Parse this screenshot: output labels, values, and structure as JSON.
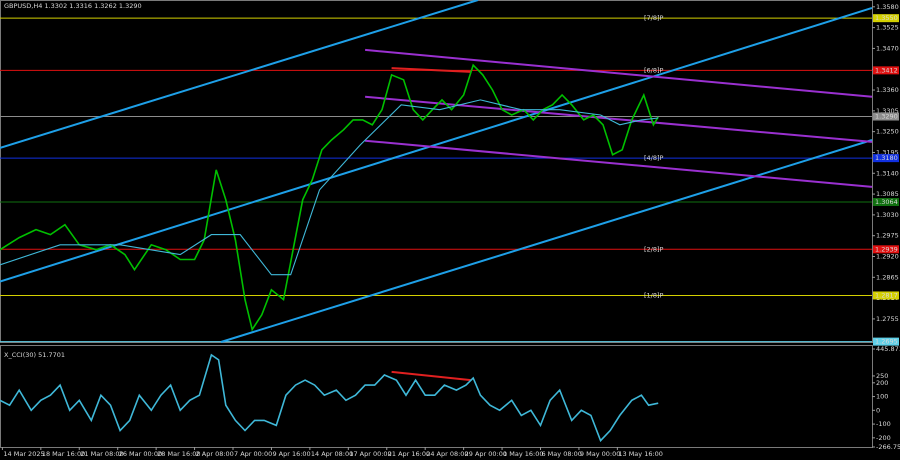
{
  "chart_data": [
    {
      "type": "line",
      "title": "GBPUSD,H4 1.3302 1.3316 1.3262 1.3290",
      "xlim": [
        0,
        363
      ],
      "ylim": [
        1.2694,
        1.3598
      ],
      "yticks": [
        {
          "value": 1.358,
          "label": "1.3580"
        },
        {
          "value": 1.3525,
          "label": "1.3525"
        },
        {
          "value": 1.347,
          "label": "1.3470"
        },
        {
          "value": 1.3415,
          "label": "1.3415"
        },
        {
          "value": 1.336,
          "label": "1.3360"
        },
        {
          "value": 1.3305,
          "label": "1.3305"
        },
        {
          "value": 1.325,
          "label": "1.3250"
        },
        {
          "value": 1.3195,
          "label": "1.3195"
        },
        {
          "value": 1.314,
          "label": "1.3140"
        },
        {
          "value": 1.3085,
          "label": "1.3085"
        },
        {
          "value": 1.303,
          "label": "1.3030"
        },
        {
          "value": 1.2975,
          "label": "1.2975"
        },
        {
          "value": 1.292,
          "label": "1.2920"
        },
        {
          "value": 1.2865,
          "label": "1.2865"
        },
        {
          "value": 1.281,
          "label": "1.2810"
        },
        {
          "value": 1.2755,
          "label": "1.2755"
        }
      ],
      "levels": [
        {
          "value": 1.355,
          "label": "1.3550",
          "color": "#d4d000",
          "tag": "[7/8]P"
        },
        {
          "value": 1.3412,
          "label": "1.3412",
          "color": "#e01010",
          "tag": "[6/8]P"
        },
        {
          "value": 1.329,
          "label": "1.3290",
          "color": "#8c8c8c"
        },
        {
          "value": 1.318,
          "label": "1.3180",
          "color": "#1030e0",
          "tag": "[4/8]P"
        },
        {
          "value": 1.3064,
          "label": "1.3064",
          "color": "#107010"
        },
        {
          "value": 1.2939,
          "label": "1.2939",
          "color": "#e01010",
          "tag": "[2/8]P"
        },
        {
          "value": 1.2817,
          "label": "1.2817",
          "color": "#d4d000",
          "tag": "[1/8]P"
        },
        {
          "value": 1.2695,
          "label": "1.2695",
          "color": "#5fd0e8"
        }
      ],
      "series": [
        {
          "color": "#00c000",
          "x": [
            0,
            8,
            15,
            21,
            27,
            33,
            40,
            46,
            52,
            56,
            63,
            69,
            75,
            81,
            85,
            90,
            94,
            98,
            102,
            105,
            109,
            113,
            118,
            122,
            126,
            130,
            134,
            138,
            143,
            147,
            151,
            155,
            159,
            163,
            168,
            172,
            176,
            180,
            184,
            188,
            193,
            197,
            201,
            205,
            209,
            213,
            218,
            222,
            226,
            230,
            234,
            238,
            243,
            247,
            251,
            255,
            259,
            263,
            268,
            272,
            274
          ],
          "values": [
            1.2938,
            1.297,
            1.2991,
            1.2978,
            1.3004,
            1.2951,
            1.2938,
            1.2951,
            1.2925,
            1.2885,
            1.2951,
            1.2938,
            1.2912,
            1.2912,
            1.2964,
            1.3149,
            1.307,
            1.2964,
            1.2806,
            1.2727,
            1.2766,
            1.2832,
            1.2806,
            1.2938,
            1.307,
            1.3123,
            1.3202,
            1.3228,
            1.3255,
            1.3281,
            1.3281,
            1.3268,
            1.3308,
            1.34,
            1.3387,
            1.3308,
            1.3281,
            1.3308,
            1.3334,
            1.3308,
            1.3347,
            1.3426,
            1.34,
            1.336,
            1.3308,
            1.3294,
            1.3308,
            1.3281,
            1.3308,
            1.3321,
            1.3347,
            1.3321,
            1.3281,
            1.3294,
            1.3268,
            1.3189,
            1.3202,
            1.3281,
            1.3347,
            1.3268,
            1.3289
          ]
        },
        {
          "color": "#3fb8d8",
          "x": [
            0,
            25,
            50,
            75,
            88,
            100,
            113,
            121,
            133,
            150,
            167,
            183,
            200,
            217,
            233,
            250,
            258,
            267,
            274
          ],
          "values": [
            1.2898,
            1.2951,
            1.2951,
            1.2925,
            1.2978,
            1.2978,
            1.2872,
            1.2872,
            1.3096,
            1.3215,
            1.3321,
            1.3308,
            1.3334,
            1.3308,
            1.3308,
            1.3294,
            1.3268,
            1.3281,
            1.3286
          ]
        }
      ],
      "lines": [
        {
          "color": "#1ea0e8",
          "x": [
            0,
            199
          ],
          "values": [
            1.3207,
            1.3598
          ]
        },
        {
          "color": "#1ea0e8",
          "x": [
            0,
            363
          ],
          "values": [
            1.2854,
            1.3577
          ]
        },
        {
          "color": "#1ea0e8",
          "x": [
            92,
            363
          ],
          "values": [
            1.2694,
            1.3228
          ]
        },
        {
          "color": "#9a30d0",
          "x": [
            152,
            363
          ],
          "values": [
            1.3466,
            1.3342
          ]
        },
        {
          "color": "#9a30d0",
          "x": [
            152,
            363
          ],
          "values": [
            1.3342,
            1.3223
          ]
        },
        {
          "color": "#9a30d0",
          "x": [
            152,
            363
          ],
          "values": [
            1.3226,
            1.3104
          ]
        },
        {
          "color": "#e02020",
          "x": [
            163,
            196
          ],
          "values": [
            1.3418,
            1.3408
          ]
        }
      ]
    },
    {
      "type": "line",
      "title": "X_CCI(30) 51.7701",
      "xlim": [
        0,
        363
      ],
      "ylim": [
        -266.7577,
        445.8715
      ],
      "yticks": [
        {
          "value": 445.8715,
          "label": "445.8715"
        },
        250,
        200,
        100,
        0,
        -100,
        -200,
        {
          "value": -266.7577,
          "label": "-266.7577"
        }
      ],
      "series": [
        {
          "color": "#3fb8d8",
          "x": [
            0,
            4,
            8,
            13,
            17,
            21,
            25,
            29,
            33,
            38,
            42,
            46,
            50,
            54,
            58,
            63,
            67,
            71,
            75,
            79,
            83,
            88,
            91,
            94,
            98,
            102,
            106,
            110,
            115,
            119,
            123,
            127,
            131,
            135,
            140,
            144,
            148,
            152,
            156,
            160,
            165,
            169,
            173,
            177,
            181,
            185,
            190,
            194,
            197,
            200,
            204,
            208,
            213,
            217,
            221,
            225,
            229,
            233,
            238,
            242,
            246,
            250,
            254,
            258,
            263,
            267,
            270,
            274
          ],
          "values": [
            73,
            37,
            147,
            0,
            73,
            110,
            183,
            0,
            73,
            -73,
            110,
            37,
            -147,
            -73,
            110,
            0,
            110,
            183,
            0,
            73,
            110,
            403,
            367,
            37,
            -73,
            -147,
            -73,
            -73,
            -110,
            110,
            183,
            220,
            183,
            110,
            147,
            73,
            110,
            183,
            183,
            257,
            220,
            110,
            220,
            110,
            110,
            183,
            147,
            183,
            235,
            110,
            37,
            0,
            73,
            -37,
            0,
            -110,
            73,
            147,
            -73,
            0,
            -37,
            -220,
            -147,
            -37,
            73,
            110,
            37,
            52
          ]
        }
      ],
      "lines": [
        {
          "color": "#e02020",
          "x": [
            163,
            196
          ],
          "values": [
            279,
            220
          ]
        }
      ],
      "xticks": [
        {
          "value": 1,
          "label": "14 Mar 2025"
        },
        {
          "value": 17,
          "label": "18 Mar 16:00"
        },
        {
          "value": 33,
          "label": "21 Mar 08:00"
        },
        {
          "value": 49,
          "label": "26 Mar 00:00"
        },
        {
          "value": 65,
          "label": "28 Mar 16:00"
        },
        {
          "value": 81,
          "label": "2 Apr 08:00"
        },
        {
          "value": 97,
          "label": "7 Apr 00:00"
        },
        {
          "value": 113,
          "label": "9 Apr 16:00"
        },
        {
          "value": 129,
          "label": "14 Apr 08:00"
        },
        {
          "value": 145,
          "label": "17 Apr 00:00"
        },
        {
          "value": 161,
          "label": "21 Apr 16:00"
        },
        {
          "value": 177,
          "label": "24 Apr 08:00"
        },
        {
          "value": 193,
          "label": "29 Apr 00:00"
        },
        {
          "value": 209,
          "label": "1 May 16:00"
        },
        {
          "value": 225,
          "label": "6 May 08:00"
        },
        {
          "value": 241,
          "label": "9 May 00:00"
        },
        {
          "value": 257,
          "label": "13 May 16:00"
        }
      ]
    }
  ]
}
